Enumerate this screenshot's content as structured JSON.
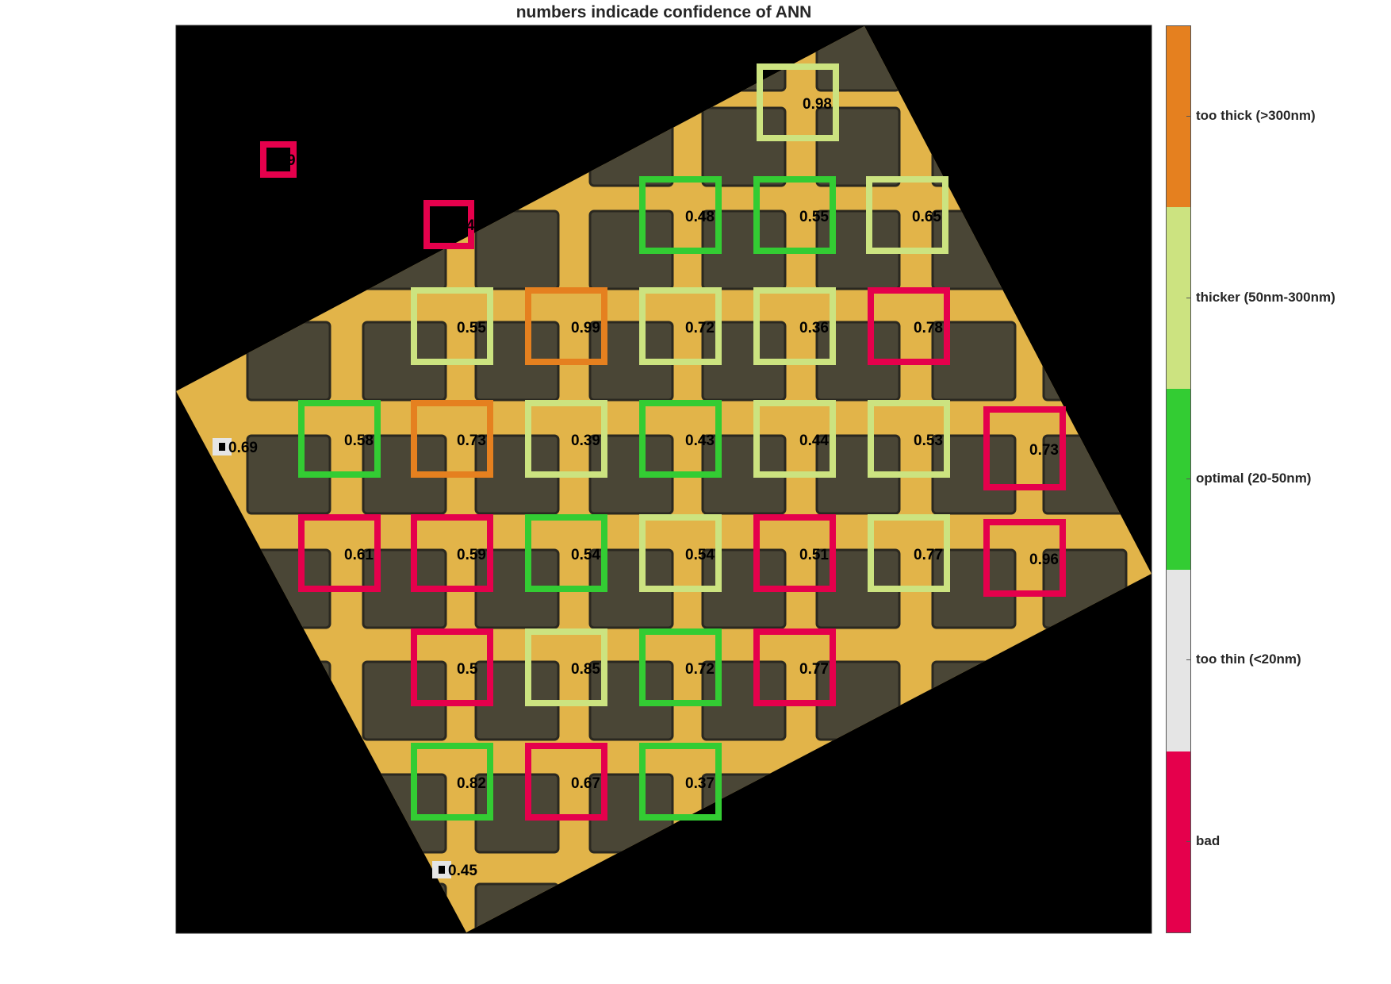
{
  "title": "numbers indicade confidence of ANN",
  "legend": {
    "categories": [
      {
        "label": "too thick (>300nm)",
        "color": "#E5801F"
      },
      {
        "label": "thicker (50nm-300nm)",
        "color": "#CCE380"
      },
      {
        "label": "optimal (20-50nm)",
        "color": "#33CC33"
      },
      {
        "label": "too thin (<20nm)",
        "color": "#E5E5E5"
      },
      {
        "label": "bad",
        "color": "#E5004C"
      }
    ]
  },
  "colors": {
    "background": "#000000",
    "substrate": "#E2B449",
    "flake": "#4A4636",
    "label_text": "#000000"
  },
  "detections": [
    {
      "class": "bad",
      "confidence": "9"
    },
    {
      "class": "bad",
      "confidence": "4"
    },
    {
      "class": "thicker (50nm-300nm)",
      "confidence": "0.98"
    },
    {
      "class": "optimal (20-50nm)",
      "confidence": "0.48"
    },
    {
      "class": "optimal (20-50nm)",
      "confidence": "0.55"
    },
    {
      "class": "thicker (50nm-300nm)",
      "confidence": "0.65"
    },
    {
      "class": "thicker (50nm-300nm)",
      "confidence": "0.55"
    },
    {
      "class": "too thick (>300nm)",
      "confidence": "0.99"
    },
    {
      "class": "thicker (50nm-300nm)",
      "confidence": "0.72"
    },
    {
      "class": "thicker (50nm-300nm)",
      "confidence": "0.36"
    },
    {
      "class": "bad",
      "confidence": "0.78"
    },
    {
      "class": "too thin (<20nm)",
      "confidence": "0.69"
    },
    {
      "class": "optimal (20-50nm)",
      "confidence": "0.58"
    },
    {
      "class": "too thick (>300nm)",
      "confidence": "0.73"
    },
    {
      "class": "thicker (50nm-300nm)",
      "confidence": "0.39"
    },
    {
      "class": "optimal (20-50nm)",
      "confidence": "0.43"
    },
    {
      "class": "thicker (50nm-300nm)",
      "confidence": "0.44"
    },
    {
      "class": "thicker (50nm-300nm)",
      "confidence": "0.53"
    },
    {
      "class": "bad",
      "confidence": "0.73"
    },
    {
      "class": "bad",
      "confidence": "0.61"
    },
    {
      "class": "bad",
      "confidence": "0.59"
    },
    {
      "class": "optimal (20-50nm)",
      "confidence": "0.54"
    },
    {
      "class": "thicker (50nm-300nm)",
      "confidence": "0.54"
    },
    {
      "class": "bad",
      "confidence": "0.51"
    },
    {
      "class": "thicker (50nm-300nm)",
      "confidence": "0.77"
    },
    {
      "class": "bad",
      "confidence": "0.96"
    },
    {
      "class": "bad",
      "confidence": "0.5"
    },
    {
      "class": "thicker (50nm-300nm)",
      "confidence": "0.85"
    },
    {
      "class": "optimal (20-50nm)",
      "confidence": "0.72"
    },
    {
      "class": "bad",
      "confidence": "0.77"
    },
    {
      "class": "optimal (20-50nm)",
      "confidence": "0.82"
    },
    {
      "class": "bad",
      "confidence": "0.67"
    },
    {
      "class": "optimal (20-50nm)",
      "confidence": "0.37"
    },
    {
      "class": "too thin (<20nm)",
      "confidence": "0.45"
    }
  ]
}
